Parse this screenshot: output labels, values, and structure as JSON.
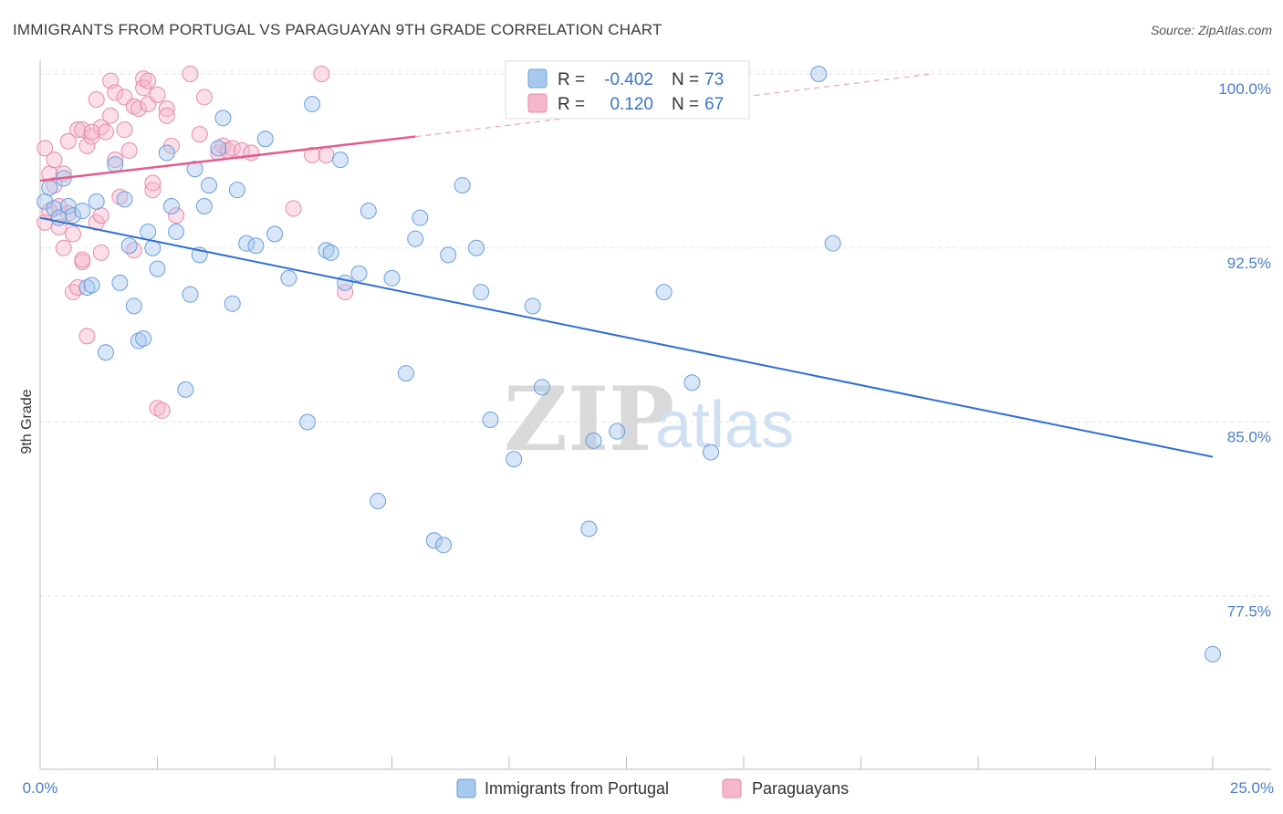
{
  "title": "IMMIGRANTS FROM PORTUGAL VS PARAGUAYAN 9TH GRADE CORRELATION CHART",
  "source": "Source: ZipAtlas.com",
  "watermark": {
    "zip": "ZIP",
    "atlas": "atlas"
  },
  "legend_top": {
    "rows": [
      {
        "r_label": "R =",
        "r_value": "-0.402",
        "n_label": "N =",
        "n_value": "73"
      },
      {
        "r_label": "R =",
        "r_value": "0.120",
        "n_label": "N =",
        "n_value": "67"
      }
    ]
  },
  "chart_data": {
    "type": "scatter",
    "title": "IMMIGRANTS FROM PORTUGAL VS PARAGUAYAN 9TH GRADE CORRELATION CHART",
    "xlabel": "",
    "ylabel": "9th Grade",
    "xlim": [
      0,
      25
    ],
    "ylim": [
      70.5,
      101.0
    ],
    "x_tick_labels": [
      "0.0%",
      "25.0%"
    ],
    "y_ticks": [
      100.0,
      92.5,
      85.0,
      77.5
    ],
    "y_tick_labels": [
      "100.0%",
      "92.5%",
      "85.0%",
      "77.5%"
    ],
    "grid": true,
    "legend_position": "bottom",
    "colors": {
      "portugal": "#a9c8ee",
      "portugal_line": "#2f6fcf",
      "paraguay": "#f5b8cb",
      "paraguay_line": "#e35c8c"
    },
    "series": [
      {
        "name": "Immigrants from Portugal",
        "r": -0.402,
        "n": 73,
        "trend": {
          "x": [
            0.0,
            25.0
          ],
          "y": [
            93.8,
            83.5
          ]
        },
        "points": [
          [
            0.1,
            94.5
          ],
          [
            0.2,
            95.1
          ],
          [
            0.3,
            94.2
          ],
          [
            0.4,
            93.8
          ],
          [
            0.5,
            95.5
          ],
          [
            0.6,
            94.3
          ],
          [
            0.7,
            93.9
          ],
          [
            0.9,
            94.1
          ],
          [
            1.0,
            90.8
          ],
          [
            1.1,
            90.9
          ],
          [
            1.2,
            94.5
          ],
          [
            1.4,
            88.0
          ],
          [
            1.6,
            96.1
          ],
          [
            1.7,
            91.0
          ],
          [
            1.8,
            94.6
          ],
          [
            1.9,
            92.6
          ],
          [
            2.0,
            90.0
          ],
          [
            2.1,
            88.5
          ],
          [
            2.2,
            88.6
          ],
          [
            2.3,
            93.2
          ],
          [
            2.4,
            92.5
          ],
          [
            2.5,
            91.6
          ],
          [
            2.7,
            96.6
          ],
          [
            2.8,
            94.3
          ],
          [
            2.9,
            93.2
          ],
          [
            3.1,
            86.4
          ],
          [
            3.2,
            90.5
          ],
          [
            3.3,
            95.9
          ],
          [
            3.4,
            92.2
          ],
          [
            3.5,
            94.3
          ],
          [
            3.6,
            95.2
          ],
          [
            3.8,
            96.8
          ],
          [
            3.9,
            98.1
          ],
          [
            4.1,
            90.1
          ],
          [
            4.2,
            95.0
          ],
          [
            4.4,
            92.7
          ],
          [
            4.6,
            92.6
          ],
          [
            4.8,
            97.2
          ],
          [
            5.0,
            93.1
          ],
          [
            5.3,
            91.2
          ],
          [
            5.7,
            85.0
          ],
          [
            5.8,
            98.7
          ],
          [
            6.1,
            92.4
          ],
          [
            6.2,
            92.3
          ],
          [
            6.4,
            96.3
          ],
          [
            6.5,
            91.0
          ],
          [
            6.8,
            91.4
          ],
          [
            7.0,
            94.1
          ],
          [
            7.2,
            81.6
          ],
          [
            7.5,
            91.2
          ],
          [
            7.8,
            87.1
          ],
          [
            8.0,
            92.9
          ],
          [
            8.1,
            93.8
          ],
          [
            8.4,
            79.9
          ],
          [
            8.6,
            79.7
          ],
          [
            8.7,
            92.2
          ],
          [
            9.0,
            95.2
          ],
          [
            9.3,
            92.5
          ],
          [
            9.4,
            90.6
          ],
          [
            9.6,
            85.1
          ],
          [
            10.1,
            83.4
          ],
          [
            10.5,
            90.0
          ],
          [
            10.7,
            86.5
          ],
          [
            11.7,
            80.4
          ],
          [
            11.8,
            84.2
          ],
          [
            12.3,
            84.6
          ],
          [
            13.3,
            90.6
          ],
          [
            13.9,
            86.7
          ],
          [
            14.3,
            83.7
          ],
          [
            14.8,
            100.0
          ],
          [
            16.6,
            100.0
          ],
          [
            16.9,
            92.7
          ],
          [
            25.0,
            75.0
          ]
        ]
      },
      {
        "name": "Paraguayans",
        "r": 0.12,
        "n": 67,
        "trend": {
          "x": [
            0.0,
            8.0
          ],
          "y": [
            95.4,
            97.3
          ]
        },
        "trend_extension": {
          "x": [
            8.0,
            19.0
          ],
          "y": [
            97.3,
            100.0
          ]
        },
        "points": [
          [
            0.1,
            93.6
          ],
          [
            0.1,
            96.8
          ],
          [
            0.2,
            95.7
          ],
          [
            0.2,
            94.1
          ],
          [
            0.3,
            96.3
          ],
          [
            0.3,
            95.2
          ],
          [
            0.4,
            93.4
          ],
          [
            0.5,
            95.7
          ],
          [
            0.5,
            92.5
          ],
          [
            0.6,
            94.0
          ],
          [
            0.6,
            97.1
          ],
          [
            0.7,
            90.6
          ],
          [
            0.7,
            93.1
          ],
          [
            0.8,
            97.6
          ],
          [
            0.8,
            90.8
          ],
          [
            0.9,
            91.9
          ],
          [
            0.9,
            97.6
          ],
          [
            1.0,
            88.7
          ],
          [
            1.0,
            96.9
          ],
          [
            1.1,
            97.3
          ],
          [
            1.2,
            93.6
          ],
          [
            1.2,
            98.9
          ],
          [
            1.3,
            97.7
          ],
          [
            1.3,
            93.9
          ],
          [
            1.3,
            92.3
          ],
          [
            1.4,
            97.5
          ],
          [
            1.5,
            99.7
          ],
          [
            1.5,
            98.2
          ],
          [
            1.6,
            96.3
          ],
          [
            1.6,
            99.2
          ],
          [
            1.7,
            94.7
          ],
          [
            1.8,
            97.6
          ],
          [
            1.8,
            99.0
          ],
          [
            1.9,
            96.7
          ],
          [
            2.0,
            98.6
          ],
          [
            2.0,
            92.4
          ],
          [
            2.1,
            98.5
          ],
          [
            2.2,
            99.8
          ],
          [
            2.2,
            99.4
          ],
          [
            2.3,
            99.7
          ],
          [
            2.3,
            98.7
          ],
          [
            2.4,
            95.0
          ],
          [
            2.4,
            95.3
          ],
          [
            2.5,
            85.6
          ],
          [
            2.5,
            99.1
          ],
          [
            2.6,
            85.5
          ],
          [
            2.7,
            98.5
          ],
          [
            2.7,
            98.2
          ],
          [
            2.8,
            96.9
          ],
          [
            2.9,
            93.9
          ],
          [
            3.2,
            100.0
          ],
          [
            3.4,
            97.4
          ],
          [
            3.5,
            99.0
          ],
          [
            3.8,
            96.6
          ],
          [
            3.9,
            96.9
          ],
          [
            4.0,
            96.7
          ],
          [
            4.1,
            96.8
          ],
          [
            4.3,
            96.7
          ],
          [
            4.5,
            96.6
          ],
          [
            5.4,
            94.2
          ],
          [
            5.8,
            96.5
          ],
          [
            6.0,
            100.0
          ],
          [
            6.1,
            96.5
          ],
          [
            6.5,
            90.6
          ],
          [
            0.9,
            92.0
          ],
          [
            1.1,
            97.5
          ],
          [
            0.4,
            94.3
          ]
        ]
      }
    ]
  }
}
